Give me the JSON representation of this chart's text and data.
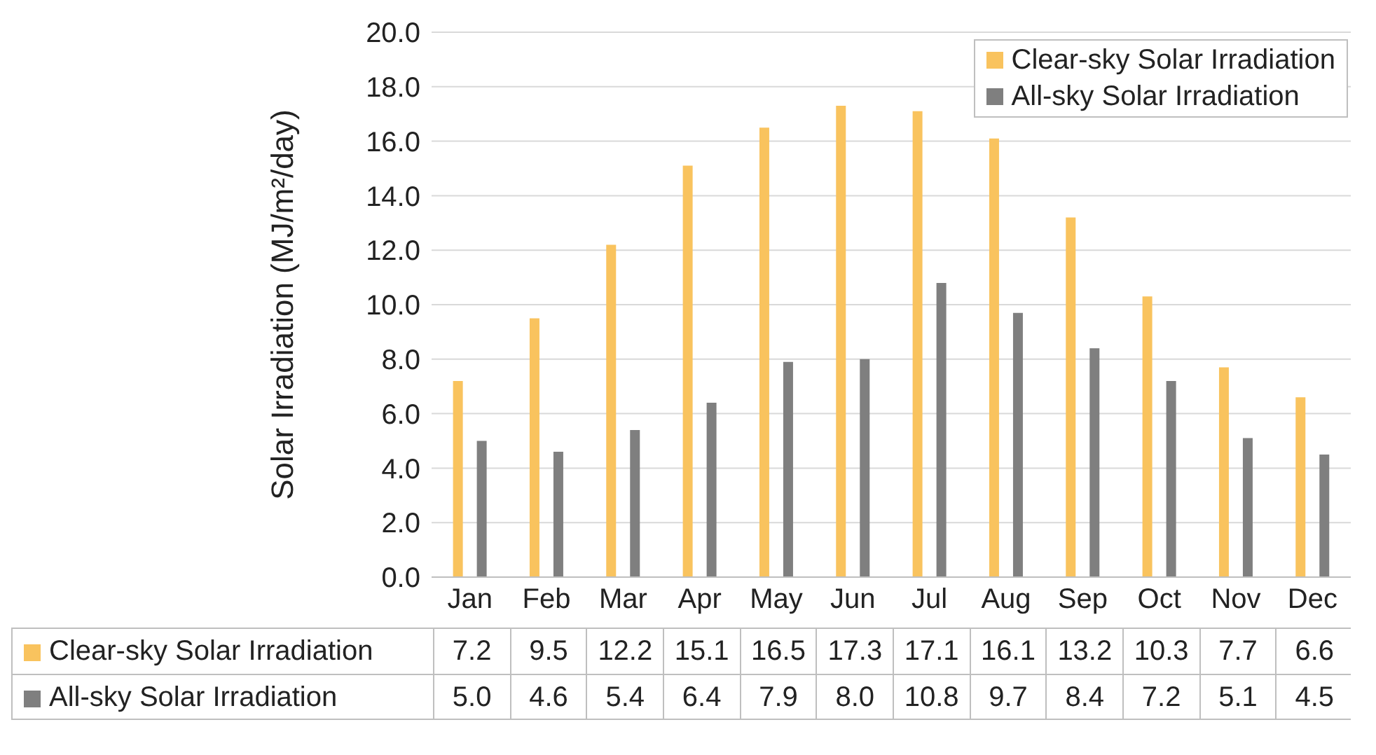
{
  "chart_data": {
    "type": "bar",
    "ylabel": "Solar Irradiation (MJ/m²/day)",
    "categories": [
      "Jan",
      "Feb",
      "Mar",
      "Apr",
      "May",
      "Jun",
      "Jul",
      "Aug",
      "Sep",
      "Oct",
      "Nov",
      "Dec"
    ],
    "series": [
      {
        "name": "Clear-sky Solar Irradiation",
        "color": "#f9c35e",
        "values": [
          7.2,
          9.5,
          12.2,
          15.1,
          16.5,
          17.3,
          17.1,
          16.1,
          13.2,
          10.3,
          7.7,
          6.6
        ],
        "value_labels": [
          "7.2",
          "9.5",
          "12.2",
          "15.1",
          "16.5",
          "17.3",
          "17.1",
          "16.1",
          "13.2",
          "10.3",
          "7.7",
          "6.6"
        ]
      },
      {
        "name": "All-sky Solar Irradiation",
        "color": "#7f7f7f",
        "values": [
          5.0,
          4.6,
          5.4,
          6.4,
          7.9,
          8.0,
          10.8,
          9.7,
          8.4,
          7.2,
          5.1,
          4.5
        ],
        "value_labels": [
          "5.0",
          "4.6",
          "5.4",
          "6.4",
          "7.9",
          "8.0",
          "10.8",
          "9.7",
          "8.4",
          "7.2",
          "5.1",
          "4.5"
        ]
      }
    ],
    "ylim": [
      0,
      20
    ],
    "yticks": [
      {
        "value": 0,
        "label": "0.0"
      },
      {
        "value": 2,
        "label": "2.0"
      },
      {
        "value": 4,
        "label": "4.0"
      },
      {
        "value": 6,
        "label": "6.0"
      },
      {
        "value": 8,
        "label": "8.0"
      },
      {
        "value": 10,
        "label": "10.0"
      },
      {
        "value": 12,
        "label": "12.0"
      },
      {
        "value": 14,
        "label": "14.0"
      },
      {
        "value": 16,
        "label": "16.0"
      },
      {
        "value": 18,
        "label": "18.0"
      },
      {
        "value": 20,
        "label": "20.0"
      }
    ],
    "grid": "y",
    "legend": "top right"
  }
}
